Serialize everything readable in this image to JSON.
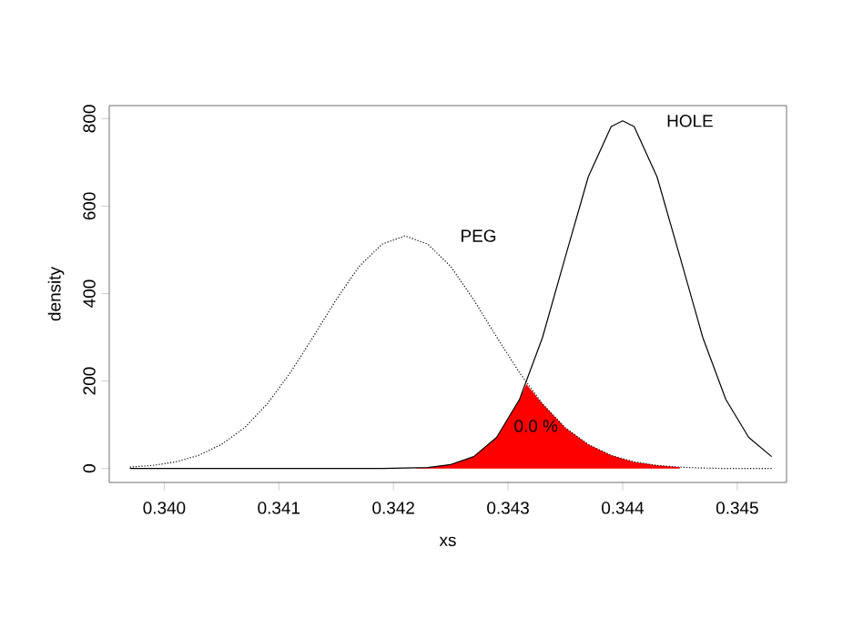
{
  "chart_data": {
    "type": "line",
    "xlabel": "xs",
    "ylabel": "density",
    "xlim": [
      0.33952,
      0.34543
    ],
    "ylim": [
      -32,
      830
    ],
    "xticks": [
      {
        "value": 0.34,
        "label": "0.340"
      },
      {
        "value": 0.341,
        "label": "0.341"
      },
      {
        "value": 0.342,
        "label": "0.342"
      },
      {
        "value": 0.343,
        "label": "0.343"
      },
      {
        "value": 0.344,
        "label": "0.344"
      },
      {
        "value": 0.345,
        "label": "0.345"
      }
    ],
    "yticks": [
      0,
      200,
      400,
      600,
      800
    ],
    "grid": false,
    "series": [
      {
        "type": "area",
        "color": "#ff0000",
        "x": [
          0.3422,
          0.3423,
          0.3425,
          0.3427,
          0.3429,
          0.3431,
          0.34316,
          0.3433,
          0.3435,
          0.3437,
          0.3439,
          0.3441,
          0.3443,
          0.3445
        ],
        "values": [
          1,
          2,
          9,
          27,
          71,
          158,
          193,
          148,
          93,
          55,
          30,
          15,
          7,
          3
        ]
      },
      {
        "name": "PEG",
        "color": "#000000",
        "line_style": "dotted",
        "x": [
          0.3397,
          0.3399,
          0.3401,
          0.3403,
          0.3405,
          0.3407,
          0.3409,
          0.3411,
          0.3413,
          0.3415,
          0.3417,
          0.3419,
          0.3421,
          0.3423,
          0.3425,
          0.3427,
          0.3429,
          0.3431,
          0.3433,
          0.3435,
          0.3437,
          0.3439,
          0.3441,
          0.3443,
          0.3445,
          0.3447,
          0.3449,
          0.3451,
          0.3453
        ],
        "values": [
          3,
          7,
          15,
          30,
          55,
          93,
          148,
          219,
          301,
          386,
          462,
          513,
          532,
          513,
          462,
          386,
          301,
          219,
          148,
          93,
          55,
          30,
          15,
          7,
          3,
          1,
          0,
          0,
          0
        ]
      },
      {
        "name": "HOLE",
        "color": "#000000",
        "line_style": "solid",
        "x": [
          0.3397,
          0.3401,
          0.3405,
          0.3409,
          0.3413,
          0.3417,
          0.3419,
          0.3421,
          0.3423,
          0.3425,
          0.3427,
          0.3429,
          0.3431,
          0.3433,
          0.3435,
          0.3437,
          0.3439,
          0.344,
          0.3441,
          0.3443,
          0.3445,
          0.3447,
          0.3449,
          0.3451,
          0.3453
        ],
        "values": [
          0,
          0,
          0,
          0,
          0,
          0,
          0,
          1,
          2,
          9,
          27,
          71,
          158,
          299,
          484,
          667,
          782,
          795,
          782,
          667,
          484,
          299,
          158,
          71,
          27
        ]
      }
    ],
    "annotations": [
      "0.0 %"
    ]
  }
}
